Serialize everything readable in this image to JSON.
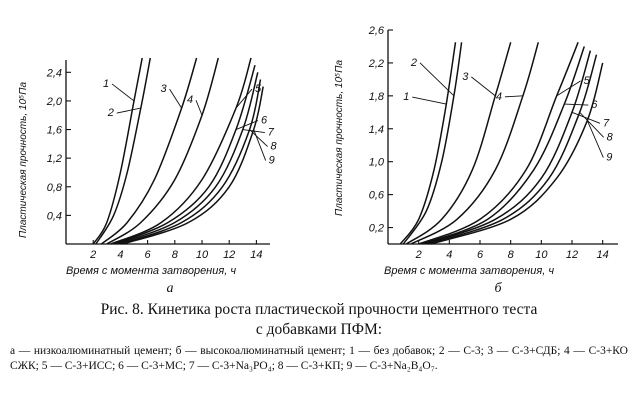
{
  "chart_data": [
    {
      "type": "line",
      "panel_label": "а",
      "xlabel": "Время с момента затворения, ч",
      "ylabel": "Пластическая прочность, 10⁵Па",
      "xlim": [
        0,
        15
      ],
      "ylim": [
        0,
        2.6
      ],
      "xticks": [
        2,
        4,
        6,
        8,
        10,
        12,
        14
      ],
      "yticks": [
        0.4,
        0.8,
        1.2,
        1.6,
        2.0,
        2.4
      ],
      "ytick_labels": [
        "0,4",
        "0,8",
        "1,2",
        "1,6",
        "2,0",
        "2,4"
      ],
      "series": [
        {
          "name": "1",
          "x": [
            2.0,
            3.0,
            4.0,
            5.0,
            5.6
          ],
          "y": [
            0.0,
            0.3,
            1.0,
            2.0,
            2.6
          ]
        },
        {
          "name": "2",
          "x": [
            2.2,
            3.5,
            4.5,
            5.5,
            6.2
          ],
          "y": [
            0.0,
            0.4,
            1.0,
            1.9,
            2.6
          ]
        },
        {
          "name": "3",
          "x": [
            2.6,
            4.5,
            6.5,
            8.5,
            9.6
          ],
          "y": [
            0.0,
            0.3,
            0.9,
            1.9,
            2.6
          ]
        },
        {
          "name": "4",
          "x": [
            3.0,
            5.5,
            8.0,
            10.0,
            11.2
          ],
          "y": [
            0.0,
            0.3,
            0.9,
            1.8,
            2.6
          ]
        },
        {
          "name": "5",
          "x": [
            3.3,
            7.0,
            10.0,
            12.5,
            13.6
          ],
          "y": [
            0.0,
            0.3,
            0.9,
            1.9,
            2.6
          ]
        },
        {
          "name": "6",
          "x": [
            3.5,
            7.5,
            10.5,
            12.5,
            13.9
          ],
          "y": [
            0.0,
            0.3,
            0.8,
            1.6,
            2.5
          ]
        },
        {
          "name": "7",
          "x": [
            3.7,
            8.0,
            11.0,
            13.0,
            14.1
          ],
          "y": [
            0.0,
            0.3,
            0.8,
            1.6,
            2.4
          ]
        },
        {
          "name": "8",
          "x": [
            4.0,
            8.5,
            11.5,
            13.5,
            14.3
          ],
          "y": [
            0.0,
            0.3,
            0.8,
            1.6,
            2.3
          ]
        },
        {
          "name": "9",
          "x": [
            4.2,
            9.0,
            12.0,
            13.8,
            14.5
          ],
          "y": [
            0.0,
            0.3,
            0.8,
            1.6,
            2.2
          ]
        }
      ]
    },
    {
      "type": "line",
      "panel_label": "б",
      "xlabel": "Время с момента затворения, ч",
      "ylabel": "Пластическая прочность, 10⁵Па",
      "xlim": [
        0,
        15
      ],
      "ylim": [
        0,
        2.6
      ],
      "xticks": [
        2,
        4,
        6,
        8,
        10,
        12,
        14
      ],
      "yticks": [
        0.2,
        0.6,
        1.0,
        1.4,
        1.8,
        2.2,
        2.6
      ],
      "ytick_labels": [
        "0,2",
        "0,6",
        "1,0",
        "1,4",
        "1,8",
        "2,2",
        "2,6"
      ],
      "series": [
        {
          "name": "1",
          "x": [
            0.8,
            2.0,
            3.0,
            3.8,
            4.4
          ],
          "y": [
            0.0,
            0.3,
            0.9,
            1.7,
            2.45
          ]
        },
        {
          "name": "2",
          "x": [
            1.0,
            2.5,
            3.5,
            4.3,
            4.8
          ],
          "y": [
            0.0,
            0.4,
            1.0,
            1.8,
            2.45
          ]
        },
        {
          "name": "3",
          "x": [
            1.2,
            3.5,
            5.5,
            7.0,
            8.0
          ],
          "y": [
            0.0,
            0.3,
            0.9,
            1.8,
            2.45
          ]
        },
        {
          "name": "4",
          "x": [
            1.5,
            4.5,
            7.0,
            8.8,
            9.8
          ],
          "y": [
            0.0,
            0.3,
            0.9,
            1.8,
            2.45
          ]
        },
        {
          "name": "5",
          "x": [
            2.0,
            6.0,
            9.0,
            11.0,
            12.4
          ],
          "y": [
            0.0,
            0.3,
            0.9,
            1.8,
            2.45
          ]
        },
        {
          "name": "6",
          "x": [
            2.2,
            6.5,
            9.5,
            11.5,
            12.8
          ],
          "y": [
            0.0,
            0.3,
            0.9,
            1.7,
            2.4
          ]
        },
        {
          "name": "7",
          "x": [
            2.4,
            7.0,
            10.0,
            12.0,
            13.2
          ],
          "y": [
            0.0,
            0.3,
            0.8,
            1.6,
            2.35
          ]
        },
        {
          "name": "8",
          "x": [
            2.6,
            7.5,
            10.5,
            12.5,
            13.6
          ],
          "y": [
            0.0,
            0.3,
            0.8,
            1.6,
            2.3
          ]
        },
        {
          "name": "9",
          "x": [
            2.8,
            8.0,
            11.0,
            13.0,
            14.0
          ],
          "y": [
            0.0,
            0.3,
            0.8,
            1.5,
            2.2
          ]
        }
      ]
    }
  ],
  "caption": {
    "title_line1": "Рис. 8. Кинетика роста пластической прочности цементного теста",
    "title_line2": "с добавками ПФМ:",
    "legend": "а — низкоалюминатный цемент; б — высокоалюминатный цемент; 1 — без добавок; 2 — С-3; 3 — С-3+СДБ; 4 — С-3+КО СЖК; 5 — С-3+ИСС; 6 — С-3+МС; 7 — С-3+Na₃PO₄; 8 — С-3+КП; 9 — С-3+Na₂B₄O₇."
  }
}
